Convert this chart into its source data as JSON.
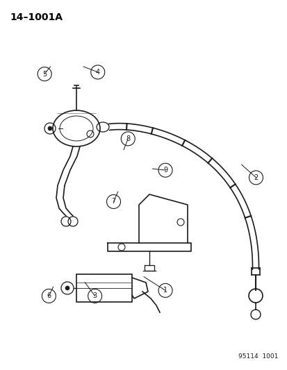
{
  "title": "14–1001A",
  "part_number": "95114  1001",
  "bg": "#ffffff",
  "lc": "#1a1a1a",
  "figsize": [
    4.14,
    5.33
  ],
  "dpi": 100,
  "callouts": [
    [
      1,
      0.575,
      0.785,
      0.5,
      0.748
    ],
    [
      2,
      0.89,
      0.48,
      0.84,
      0.445
    ],
    [
      3,
      0.33,
      0.8,
      0.295,
      0.763
    ],
    [
      4,
      0.34,
      0.195,
      0.29,
      0.18
    ],
    [
      5,
      0.155,
      0.2,
      0.175,
      0.18
    ],
    [
      6,
      0.17,
      0.8,
      0.185,
      0.775
    ],
    [
      7,
      0.395,
      0.545,
      0.41,
      0.518
    ],
    [
      8,
      0.445,
      0.375,
      0.43,
      0.405
    ],
    [
      9,
      0.575,
      0.46,
      0.53,
      0.456
    ]
  ]
}
